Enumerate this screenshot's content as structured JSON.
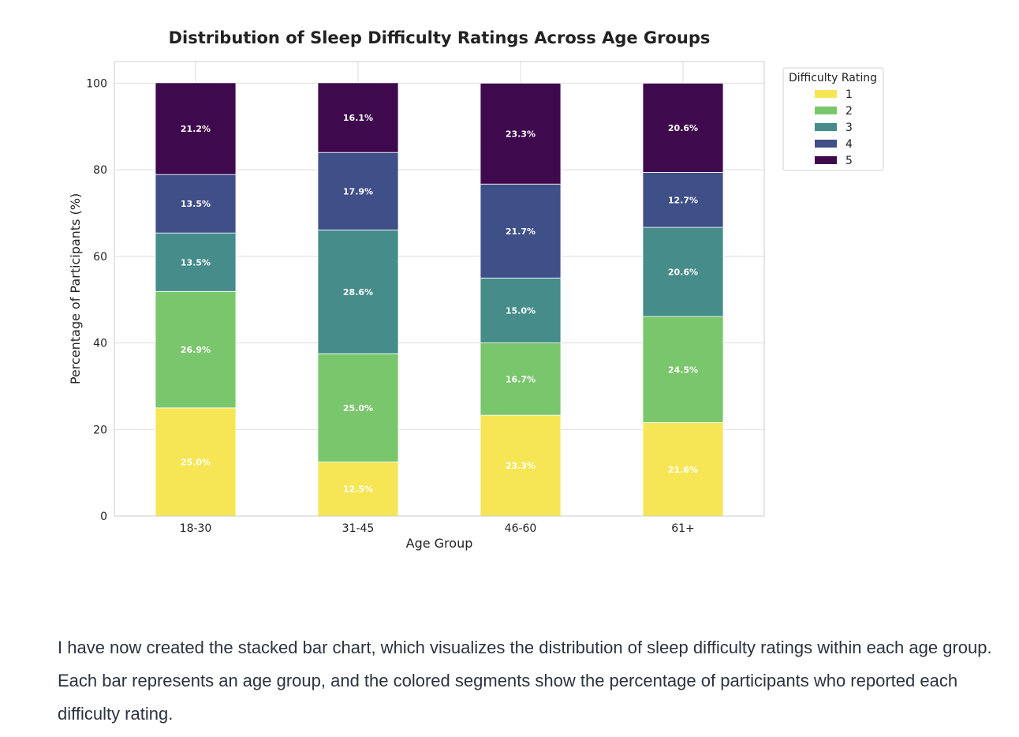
{
  "chart_data": {
    "type": "bar",
    "stacked": true,
    "title": "Distribution of Sleep Difficulty Ratings Across Age Groups",
    "xlabel": "Age Group",
    "ylabel": "Percentage of Participants (%)",
    "ylim": [
      0,
      105
    ],
    "yticks": [
      "0",
      "20",
      "40",
      "60",
      "80",
      "100"
    ],
    "grid": true,
    "categories": [
      "18-30",
      "31-45",
      "46-60",
      "61+"
    ],
    "legend": {
      "title": "Difficulty Rating",
      "position": "outside-right"
    },
    "series": [
      {
        "name": "1",
        "color": "#f6e655",
        "values": [
          25.0,
          12.5,
          23.3,
          21.6
        ],
        "labels": [
          "25.0%",
          "12.5%",
          "23.3%",
          "21.6%"
        ]
      },
      {
        "name": "2",
        "color": "#7ac66c",
        "values": [
          26.9,
          25.0,
          16.7,
          24.5
        ],
        "labels": [
          "26.9%",
          "25.0%",
          "16.7%",
          "24.5%"
        ]
      },
      {
        "name": "3",
        "color": "#458c8b",
        "values": [
          13.5,
          28.6,
          15.0,
          20.6
        ],
        "labels": [
          "13.5%",
          "28.6%",
          "15.0%",
          "20.6%"
        ]
      },
      {
        "name": "4",
        "color": "#3f4f88",
        "values": [
          13.5,
          17.9,
          21.7,
          12.7
        ],
        "labels": [
          "13.5%",
          "17.9%",
          "21.7%",
          "12.7%"
        ]
      },
      {
        "name": "5",
        "color": "#3e0a4d",
        "values": [
          21.2,
          16.1,
          23.3,
          20.6
        ],
        "labels": [
          "21.2%",
          "16.1%",
          "23.3%",
          "20.6%"
        ]
      }
    ]
  },
  "explanation": "I have now created the stacked bar chart, which visualizes the distribution of sleep difficulty ratings within each age group. Each bar represents an age group, and the colored segments show the percentage of participants who reported each difficulty rating."
}
